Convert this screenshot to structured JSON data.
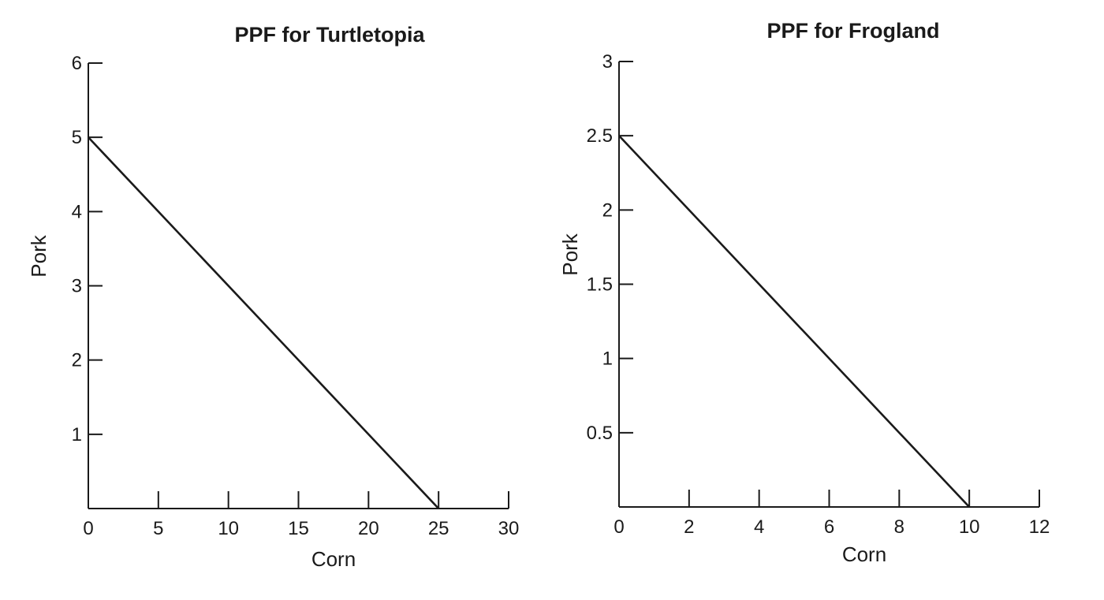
{
  "chart_data": [
    {
      "type": "line",
      "title": "PPF for Turtletopia",
      "xlabel": "Corn",
      "ylabel": "Pork",
      "xlim": [
        0,
        30
      ],
      "ylim": [
        0,
        6
      ],
      "xticks": [
        "0",
        "5",
        "10",
        "15",
        "20",
        "25",
        "30"
      ],
      "yticks": [
        "1",
        "2",
        "3",
        "4",
        "5",
        "6"
      ],
      "grid": false,
      "series": [
        {
          "points": [
            {
              "x": 0,
              "y": 5
            },
            {
              "x": 25,
              "y": 0
            }
          ]
        }
      ]
    },
    {
      "type": "line",
      "title": "PPF for Frogland",
      "xlabel": "Corn",
      "ylabel": "Pork",
      "xlim": [
        0,
        12
      ],
      "ylim": [
        0,
        3
      ],
      "xticks": [
        "0",
        "2",
        "4",
        "6",
        "8",
        "10",
        "12"
      ],
      "yticks": [
        "0.5",
        "1",
        "1.5",
        "2",
        "2.5",
        "3"
      ],
      "grid": false,
      "series": [
        {
          "points": [
            {
              "x": 0,
              "y": 2.5
            },
            {
              "x": 10,
              "y": 0
            }
          ]
        }
      ]
    }
  ]
}
